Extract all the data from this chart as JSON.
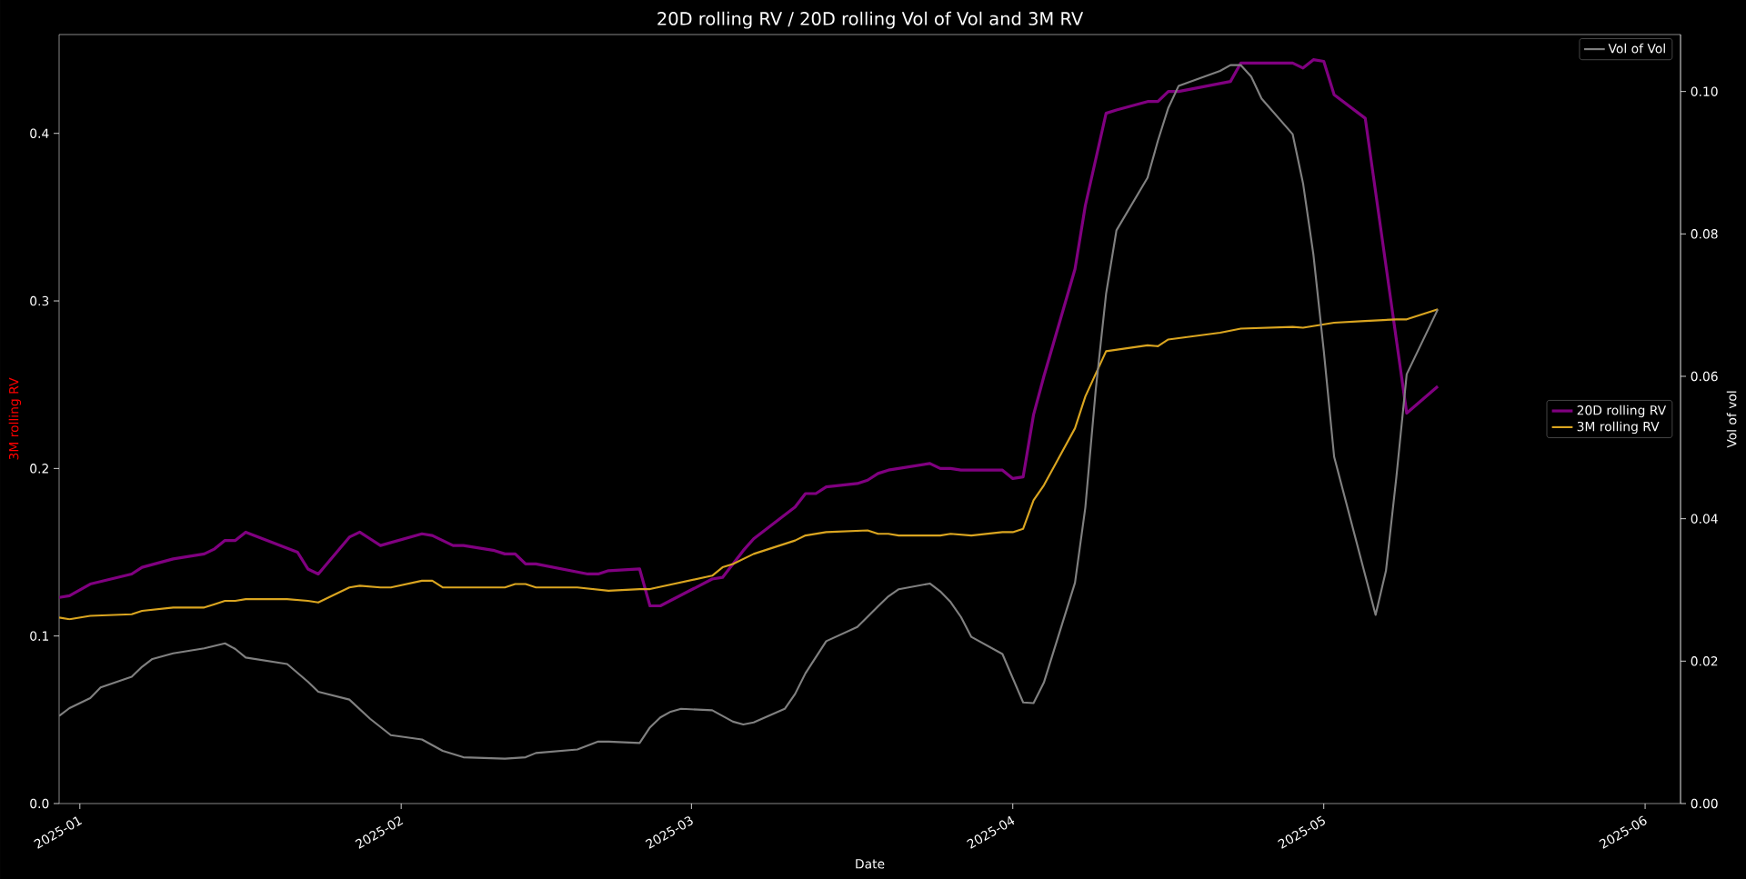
{
  "chart_data": {
    "type": "line",
    "title": "20D rolling RV / 20D rolling Vol of Vol and 3M RV",
    "xlabel": "Date",
    "ylabel": "3M rolling RV",
    "y2label": "Vol of vol",
    "xlim": [
      "2024-12-30",
      "2025-06-04T10:00"
    ],
    "xticks": [
      "2025-01",
      "2025-02",
      "2025-03",
      "2025-04",
      "2025-05",
      "2025-06"
    ],
    "ylim": [
      0,
      0.459
    ],
    "yticks": [
      {
        "value": 0,
        "label": "0.0"
      },
      0.1,
      0.2,
      0.3,
      0.4
    ],
    "y2lim": [
      0,
      0.108
    ],
    "y2ticks": [
      {
        "value": 0,
        "label": "0.00"
      },
      {
        "value": 0.02,
        "label": "0.02"
      },
      {
        "value": 0.04,
        "label": "0.04"
      },
      {
        "value": 0.06,
        "label": "0.06"
      },
      {
        "value": 0.08,
        "label": "0.08"
      },
      {
        "value": 0.1,
        "label": "0.10"
      }
    ],
    "legend": "right",
    "grid": false,
    "series": [
      {
        "name": "20D rolling RV",
        "color": "#800080",
        "x": [
          "2024-12-30",
          "2024-12-31",
          "2025-01-02",
          "2025-01-06",
          "2025-01-07",
          "2025-01-10",
          "2025-01-13",
          "2025-01-14",
          "2025-01-15",
          "2025-01-16",
          "2025-01-17",
          "2025-01-22",
          "2025-01-23",
          "2025-01-24",
          "2025-01-27",
          "2025-01-28",
          "2025-01-29",
          "2025-01-30",
          "2025-02-03",
          "2025-02-04",
          "2025-02-06",
          "2025-02-07",
          "2025-02-10",
          "2025-02-11",
          "2025-02-12",
          "2025-02-13",
          "2025-02-14",
          "2025-02-19",
          "2025-02-20",
          "2025-02-21",
          "2025-02-24",
          "2025-02-25",
          "2025-02-26",
          "2025-03-03",
          "2025-03-04",
          "2025-03-06",
          "2025-03-07",
          "2025-03-11",
          "2025-03-12",
          "2025-03-13",
          "2025-03-14",
          "2025-03-17",
          "2025-03-18",
          "2025-03-19",
          "2025-03-20",
          "2025-03-24",
          "2025-03-25",
          "2025-03-26",
          "2025-03-27",
          "2025-03-31",
          "2025-04-01",
          "2025-04-02",
          "2025-04-03",
          "2025-04-04",
          "2025-04-07",
          "2025-04-08",
          "2025-04-10",
          "2025-04-11",
          "2025-04-14",
          "2025-04-15",
          "2025-04-16",
          "2025-04-17",
          "2025-04-22",
          "2025-04-23",
          "2025-04-28",
          "2025-04-29",
          "2025-04-30",
          "2025-05-01",
          "2025-05-02",
          "2025-05-05",
          "2025-05-09",
          "2025-05-12"
        ],
        "values": [
          0.123,
          0.124,
          0.131,
          0.137,
          0.141,
          0.146,
          0.149,
          0.152,
          0.157,
          0.157,
          0.162,
          0.15,
          0.14,
          0.137,
          0.159,
          0.162,
          0.158,
          0.154,
          0.161,
          0.16,
          0.154,
          0.154,
          0.151,
          0.149,
          0.149,
          0.143,
          0.143,
          0.137,
          0.137,
          0.139,
          0.14,
          0.118,
          0.118,
          0.134,
          0.135,
          0.151,
          0.158,
          0.177,
          0.185,
          0.185,
          0.189,
          0.191,
          0.193,
          0.197,
          0.199,
          0.203,
          0.2,
          0.2,
          0.199,
          0.199,
          0.194,
          0.195,
          0.232,
          0.255,
          0.319,
          0.357,
          0.412,
          0.414,
          0.419,
          0.419,
          0.425,
          0.425,
          0.431,
          0.442,
          0.442,
          0.439,
          0.444,
          0.443,
          0.423,
          0.409,
          0.233,
          0.249
        ]
      },
      {
        "name": "3M rolling RV",
        "color": "#daa520",
        "x": [
          "2024-12-30",
          "2024-12-31",
          "2025-01-02",
          "2025-01-06",
          "2025-01-07",
          "2025-01-10",
          "2025-01-13",
          "2025-01-14",
          "2025-01-15",
          "2025-01-16",
          "2025-01-17",
          "2025-01-21",
          "2025-01-23",
          "2025-01-24",
          "2025-01-27",
          "2025-01-28",
          "2025-01-30",
          "2025-01-31",
          "2025-02-03",
          "2025-02-04",
          "2025-02-05",
          "2025-02-07",
          "2025-02-11",
          "2025-02-12",
          "2025-02-13",
          "2025-02-14",
          "2025-02-18",
          "2025-02-21",
          "2025-02-24",
          "2025-02-25",
          "2025-03-03",
          "2025-03-04",
          "2025-03-05",
          "2025-03-07",
          "2025-03-11",
          "2025-03-12",
          "2025-03-14",
          "2025-03-18",
          "2025-03-19",
          "2025-03-20",
          "2025-03-21",
          "2025-03-25",
          "2025-03-26",
          "2025-03-28",
          "2025-03-31",
          "2025-04-01",
          "2025-04-02",
          "2025-04-03",
          "2025-04-04",
          "2025-04-07",
          "2025-04-08",
          "2025-04-10",
          "2025-04-14",
          "2025-04-15",
          "2025-04-16",
          "2025-04-21",
          "2025-04-23",
          "2025-04-28",
          "2025-04-29",
          "2025-05-02",
          "2025-05-05",
          "2025-05-08",
          "2025-05-09",
          "2025-05-12"
        ],
        "values": [
          0.111,
          0.11,
          0.112,
          0.113,
          0.115,
          0.117,
          0.117,
          0.119,
          0.121,
          0.121,
          0.122,
          0.122,
          0.121,
          0.12,
          0.129,
          0.13,
          0.129,
          0.129,
          0.133,
          0.133,
          0.129,
          0.129,
          0.129,
          0.131,
          0.131,
          0.129,
          0.129,
          0.127,
          0.128,
          0.128,
          0.136,
          0.141,
          0.143,
          0.149,
          0.157,
          0.16,
          0.162,
          0.163,
          0.161,
          0.161,
          0.16,
          0.16,
          0.161,
          0.16,
          0.162,
          0.162,
          0.164,
          0.181,
          0.19,
          0.224,
          0.243,
          0.27,
          0.2735,
          0.273,
          0.277,
          0.281,
          0.2835,
          0.2845,
          0.284,
          0.287,
          0.288,
          0.289,
          0.289,
          0.295
        ]
      },
      {
        "name": "Vol of Vol",
        "color": "#808080",
        "axis": "y2",
        "x": [
          "2024-12-30",
          "2024-12-31",
          "2025-01-02",
          "2025-01-03",
          "2025-01-06",
          "2025-01-07",
          "2025-01-08",
          "2025-01-10",
          "2025-01-13",
          "2025-01-15",
          "2025-01-16",
          "2025-01-17",
          "2025-01-21",
          "2025-01-23",
          "2025-01-24",
          "2025-01-27",
          "2025-01-29",
          "2025-01-31",
          "2025-02-03",
          "2025-02-05",
          "2025-02-07",
          "2025-02-11",
          "2025-02-13",
          "2025-02-14",
          "2025-02-18",
          "2025-02-20",
          "2025-02-21",
          "2025-02-24",
          "2025-02-25",
          "2025-02-26",
          "2025-02-27",
          "2025-02-28",
          "2025-03-03",
          "2025-03-05",
          "2025-03-06",
          "2025-03-07",
          "2025-03-10",
          "2025-03-11",
          "2025-03-12",
          "2025-03-14",
          "2025-03-17",
          "2025-03-19",
          "2025-03-20",
          "2025-03-21",
          "2025-03-24",
          "2025-03-25",
          "2025-03-26",
          "2025-03-27",
          "2025-03-28",
          "2025-03-31",
          "2025-04-02",
          "2025-04-03",
          "2025-04-04",
          "2025-04-07",
          "2025-04-08",
          "2025-04-09",
          "2025-04-10",
          "2025-04-11",
          "2025-04-14",
          "2025-04-15",
          "2025-04-16",
          "2025-04-17",
          "2025-04-21",
          "2025-04-22",
          "2025-04-23",
          "2025-04-24",
          "2025-04-25",
          "2025-04-28",
          "2025-04-29",
          "2025-04-30",
          "2025-05-01",
          "2025-05-02",
          "2025-05-06",
          "2025-05-07",
          "2025-05-08",
          "2025-05-09",
          "2025-05-12"
        ],
        "values": [
          0.0123,
          0.0134,
          0.0148,
          0.0163,
          0.0178,
          0.0192,
          0.0203,
          0.0211,
          0.0218,
          0.0225,
          0.0217,
          0.0205,
          0.0196,
          0.0171,
          0.0157,
          0.0146,
          0.0119,
          0.0096,
          0.009,
          0.0074,
          0.0065,
          0.0063,
          0.0065,
          0.0071,
          0.0076,
          0.0087,
          0.0087,
          0.0085,
          0.0107,
          0.0121,
          0.0129,
          0.0133,
          0.0131,
          0.0115,
          0.0111,
          0.0114,
          0.0133,
          0.0154,
          0.0183,
          0.0228,
          0.0248,
          0.0277,
          0.0291,
          0.0301,
          0.0309,
          0.0298,
          0.0283,
          0.0262,
          0.0234,
          0.021,
          0.0142,
          0.0141,
          0.017,
          0.031,
          0.0416,
          0.0581,
          0.0716,
          0.0805,
          0.0879,
          0.0931,
          0.0977,
          0.1008,
          0.1029,
          0.1037,
          0.1037,
          0.1021,
          0.099,
          0.094,
          0.0871,
          0.0771,
          0.0636,
          0.0487,
          0.0265,
          0.0327,
          0.0458,
          0.0603,
          0.0694
        ]
      }
    ]
  }
}
